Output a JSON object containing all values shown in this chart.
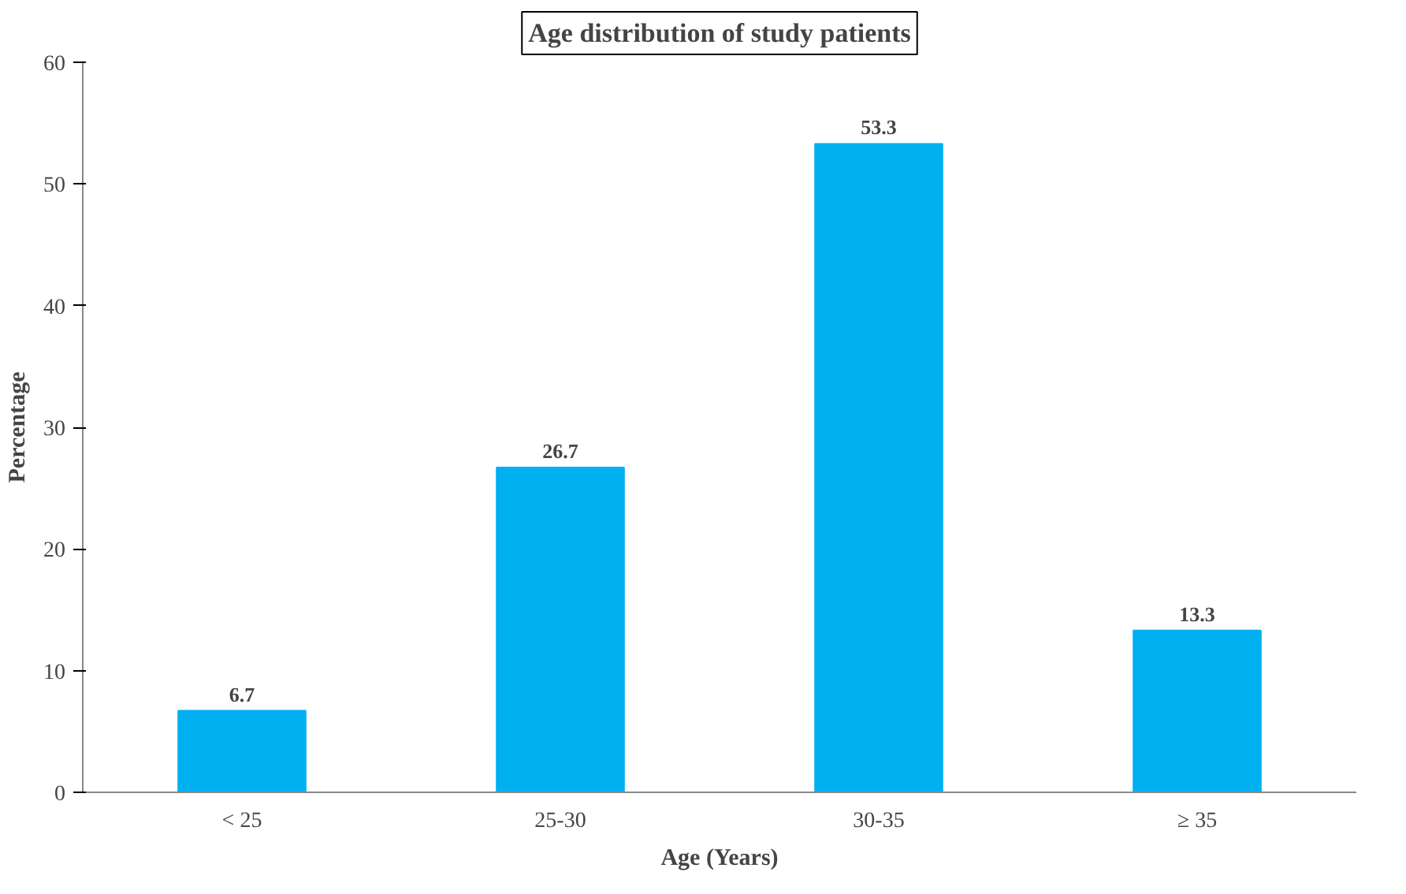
{
  "chart_data": {
    "type": "bar",
    "title": "Age distribution of study patients",
    "xlabel": "Age (Years)",
    "ylabel": "Percentage",
    "categories": [
      "< 25",
      "25-30",
      "30-35",
      "≥ 35"
    ],
    "values": [
      6.7,
      26.7,
      53.3,
      13.3
    ],
    "color": "#00b0f0",
    "ylim": [
      0,
      60
    ],
    "yticks": [
      0,
      10,
      20,
      30,
      40,
      50,
      60
    ],
    "grid": false,
    "data_labels": true
  }
}
